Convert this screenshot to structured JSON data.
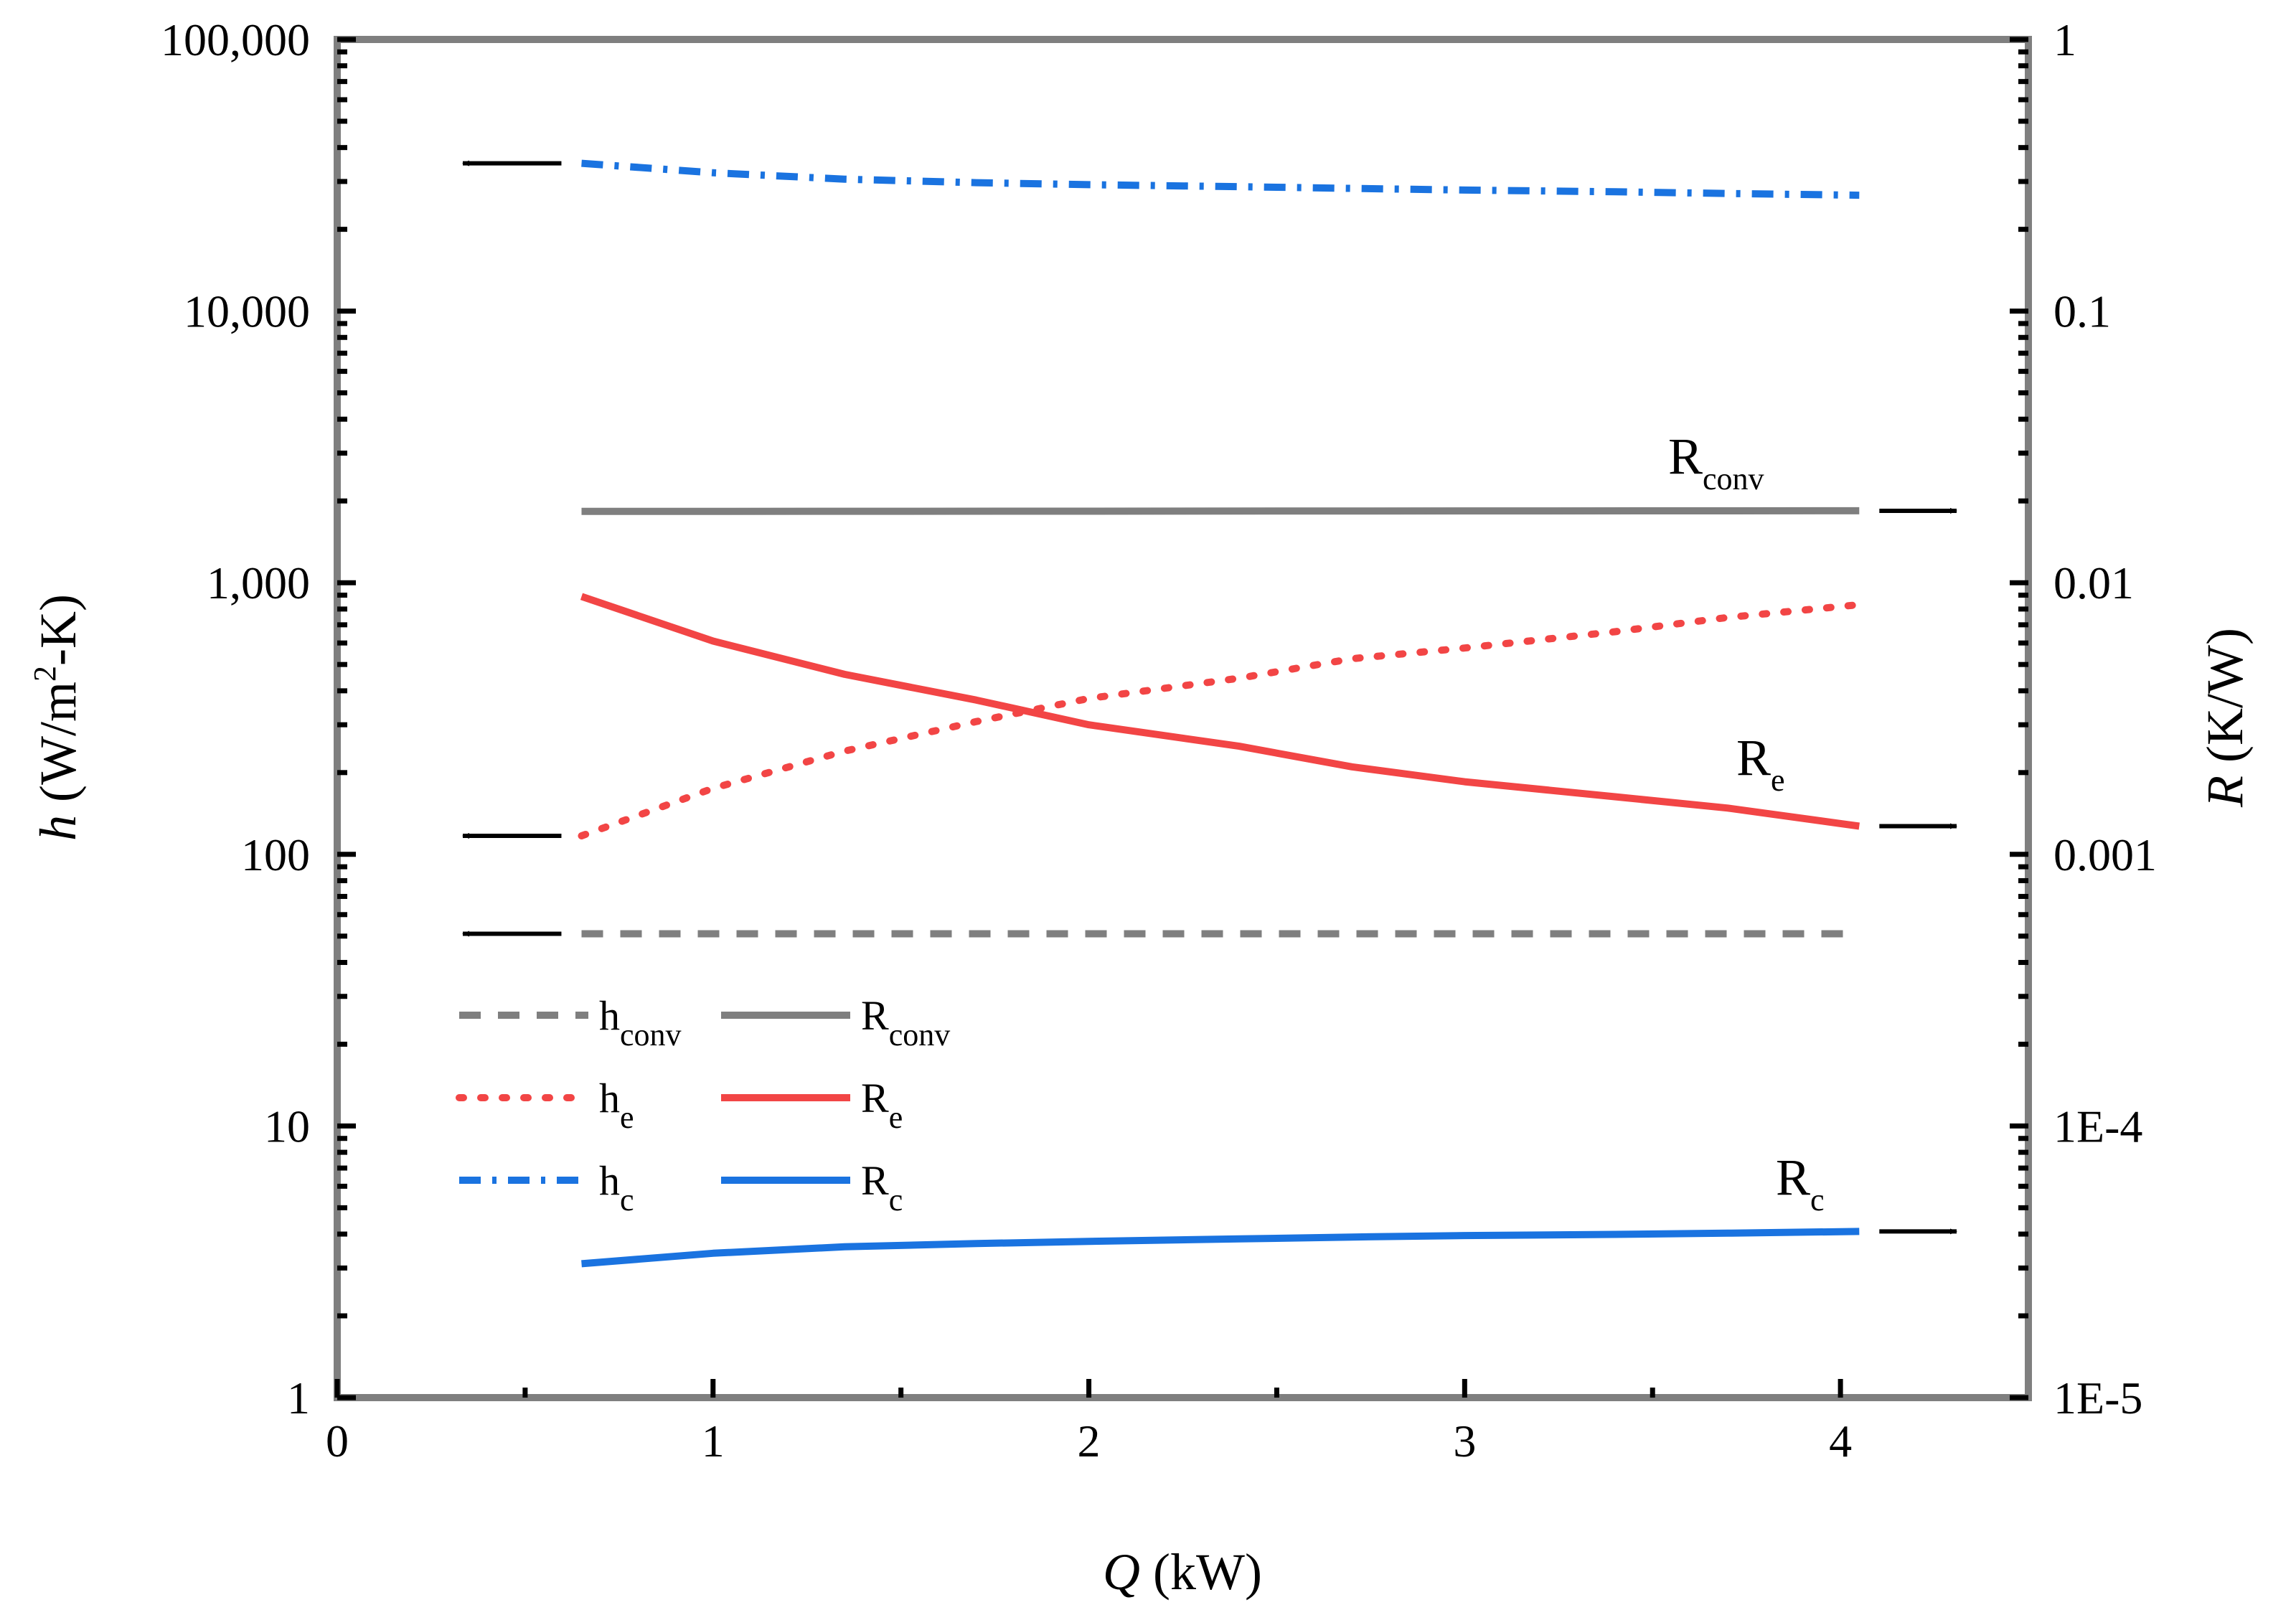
{
  "chart_data": {
    "type": "line",
    "x_axis": {
      "label_var": "Q",
      "label_unit": "(kW)",
      "range": [
        0,
        4.5
      ],
      "ticks": [
        0,
        1,
        2,
        3,
        4
      ],
      "tick_labels": [
        "0",
        "1",
        "2",
        "3",
        "4"
      ],
      "minor_ticks": [
        0.5,
        1.5,
        2.5,
        3.5
      ]
    },
    "y_left": {
      "label_var": "h",
      "label_unit_pre": "(W/m",
      "label_sup": "2",
      "label_unit_post": "-K)",
      "scale": "log",
      "range": [
        1,
        100000
      ],
      "ticks": [
        1,
        10,
        100,
        1000,
        10000,
        100000
      ],
      "tick_labels": [
        "1",
        "10",
        "100",
        "1,000",
        "10,000",
        "100,000"
      ]
    },
    "y_right": {
      "label_var": "R",
      "label_unit": "(K/W)",
      "scale": "log",
      "range": [
        1e-05,
        1
      ],
      "ticks": [
        1e-05,
        0.0001,
        0.001,
        0.01,
        0.1,
        1
      ],
      "tick_labels": [
        "1E-5",
        "1E-4",
        "0.001",
        "0.01",
        "0.1",
        "1"
      ]
    },
    "series": [
      {
        "name": "h_conv",
        "main": "h",
        "sub": "conv",
        "axis": "left",
        "color": "#7f7f7f",
        "style": "dash",
        "x": [
          0.65,
          1.0,
          1.5,
          2.0,
          2.5,
          3.0,
          3.5,
          4.05
        ],
        "y": [
          51,
          51,
          51,
          51,
          51,
          51,
          51,
          51
        ]
      },
      {
        "name": "h_e",
        "main": "h",
        "sub": "e",
        "axis": "left",
        "color": "#f24545",
        "style": "dot",
        "x": [
          0.65,
          1.0,
          1.35,
          1.7,
          2.0,
          2.4,
          2.7,
          3.0,
          3.4,
          3.7,
          4.05
        ],
        "y": [
          117,
          175,
          240,
          308,
          375,
          445,
          525,
          575,
          660,
          745,
          830
        ]
      },
      {
        "name": "h_c",
        "main": "h",
        "sub": "c",
        "axis": "left",
        "color": "#1a73e0",
        "style": "dashdot",
        "x": [
          0.65,
          1.0,
          1.35,
          1.7,
          2.0,
          2.4,
          2.7,
          3.0,
          3.4,
          3.7,
          4.05
        ],
        "y": [
          35000,
          32300,
          30600,
          29700,
          29200,
          28700,
          28300,
          27900,
          27500,
          27100,
          26700
        ]
      },
      {
        "name": "R_conv",
        "main": "R",
        "sub": "conv",
        "axis": "right",
        "color": "#7f7f7f",
        "style": "solid",
        "x": [
          0.65,
          4.05
        ],
        "y": [
          0.0183,
          0.0184
        ]
      },
      {
        "name": "R_e",
        "main": "R",
        "sub": "e",
        "axis": "right",
        "color": "#f24545",
        "style": "solid",
        "x": [
          0.65,
          1.0,
          1.35,
          1.7,
          2.0,
          2.4,
          2.7,
          3.0,
          3.4,
          3.7,
          4.05
        ],
        "y": [
          0.0089,
          0.0061,
          0.0046,
          0.0037,
          0.003,
          0.0025,
          0.0021,
          0.00185,
          0.00163,
          0.00148,
          0.00127
        ]
      },
      {
        "name": "R_c",
        "main": "R",
        "sub": "c",
        "axis": "right",
        "color": "#1a73e0",
        "style": "solid",
        "x": [
          0.65,
          1.0,
          1.35,
          1.7,
          2.0,
          2.4,
          2.7,
          3.0,
          3.4,
          3.7,
          4.05
        ],
        "y": [
          3.11e-05,
          3.4e-05,
          3.59e-05,
          3.69e-05,
          3.76e-05,
          3.84e-05,
          3.9e-05,
          3.95e-05,
          3.99e-05,
          4.03e-05,
          4.09e-05
        ]
      }
    ],
    "legend": {
      "position": "lower-left",
      "columns": 2,
      "order": [
        "h_conv",
        "R_conv",
        "h_e",
        "R_e",
        "h_c",
        "R_c"
      ]
    },
    "annotations": [
      {
        "main": "R",
        "sub": "conv",
        "color": "#7f7f7f"
      },
      {
        "main": "R",
        "sub": "e",
        "color": "#f24545"
      },
      {
        "main": "R",
        "sub": "c",
        "color": "#1a73e0"
      }
    ]
  }
}
